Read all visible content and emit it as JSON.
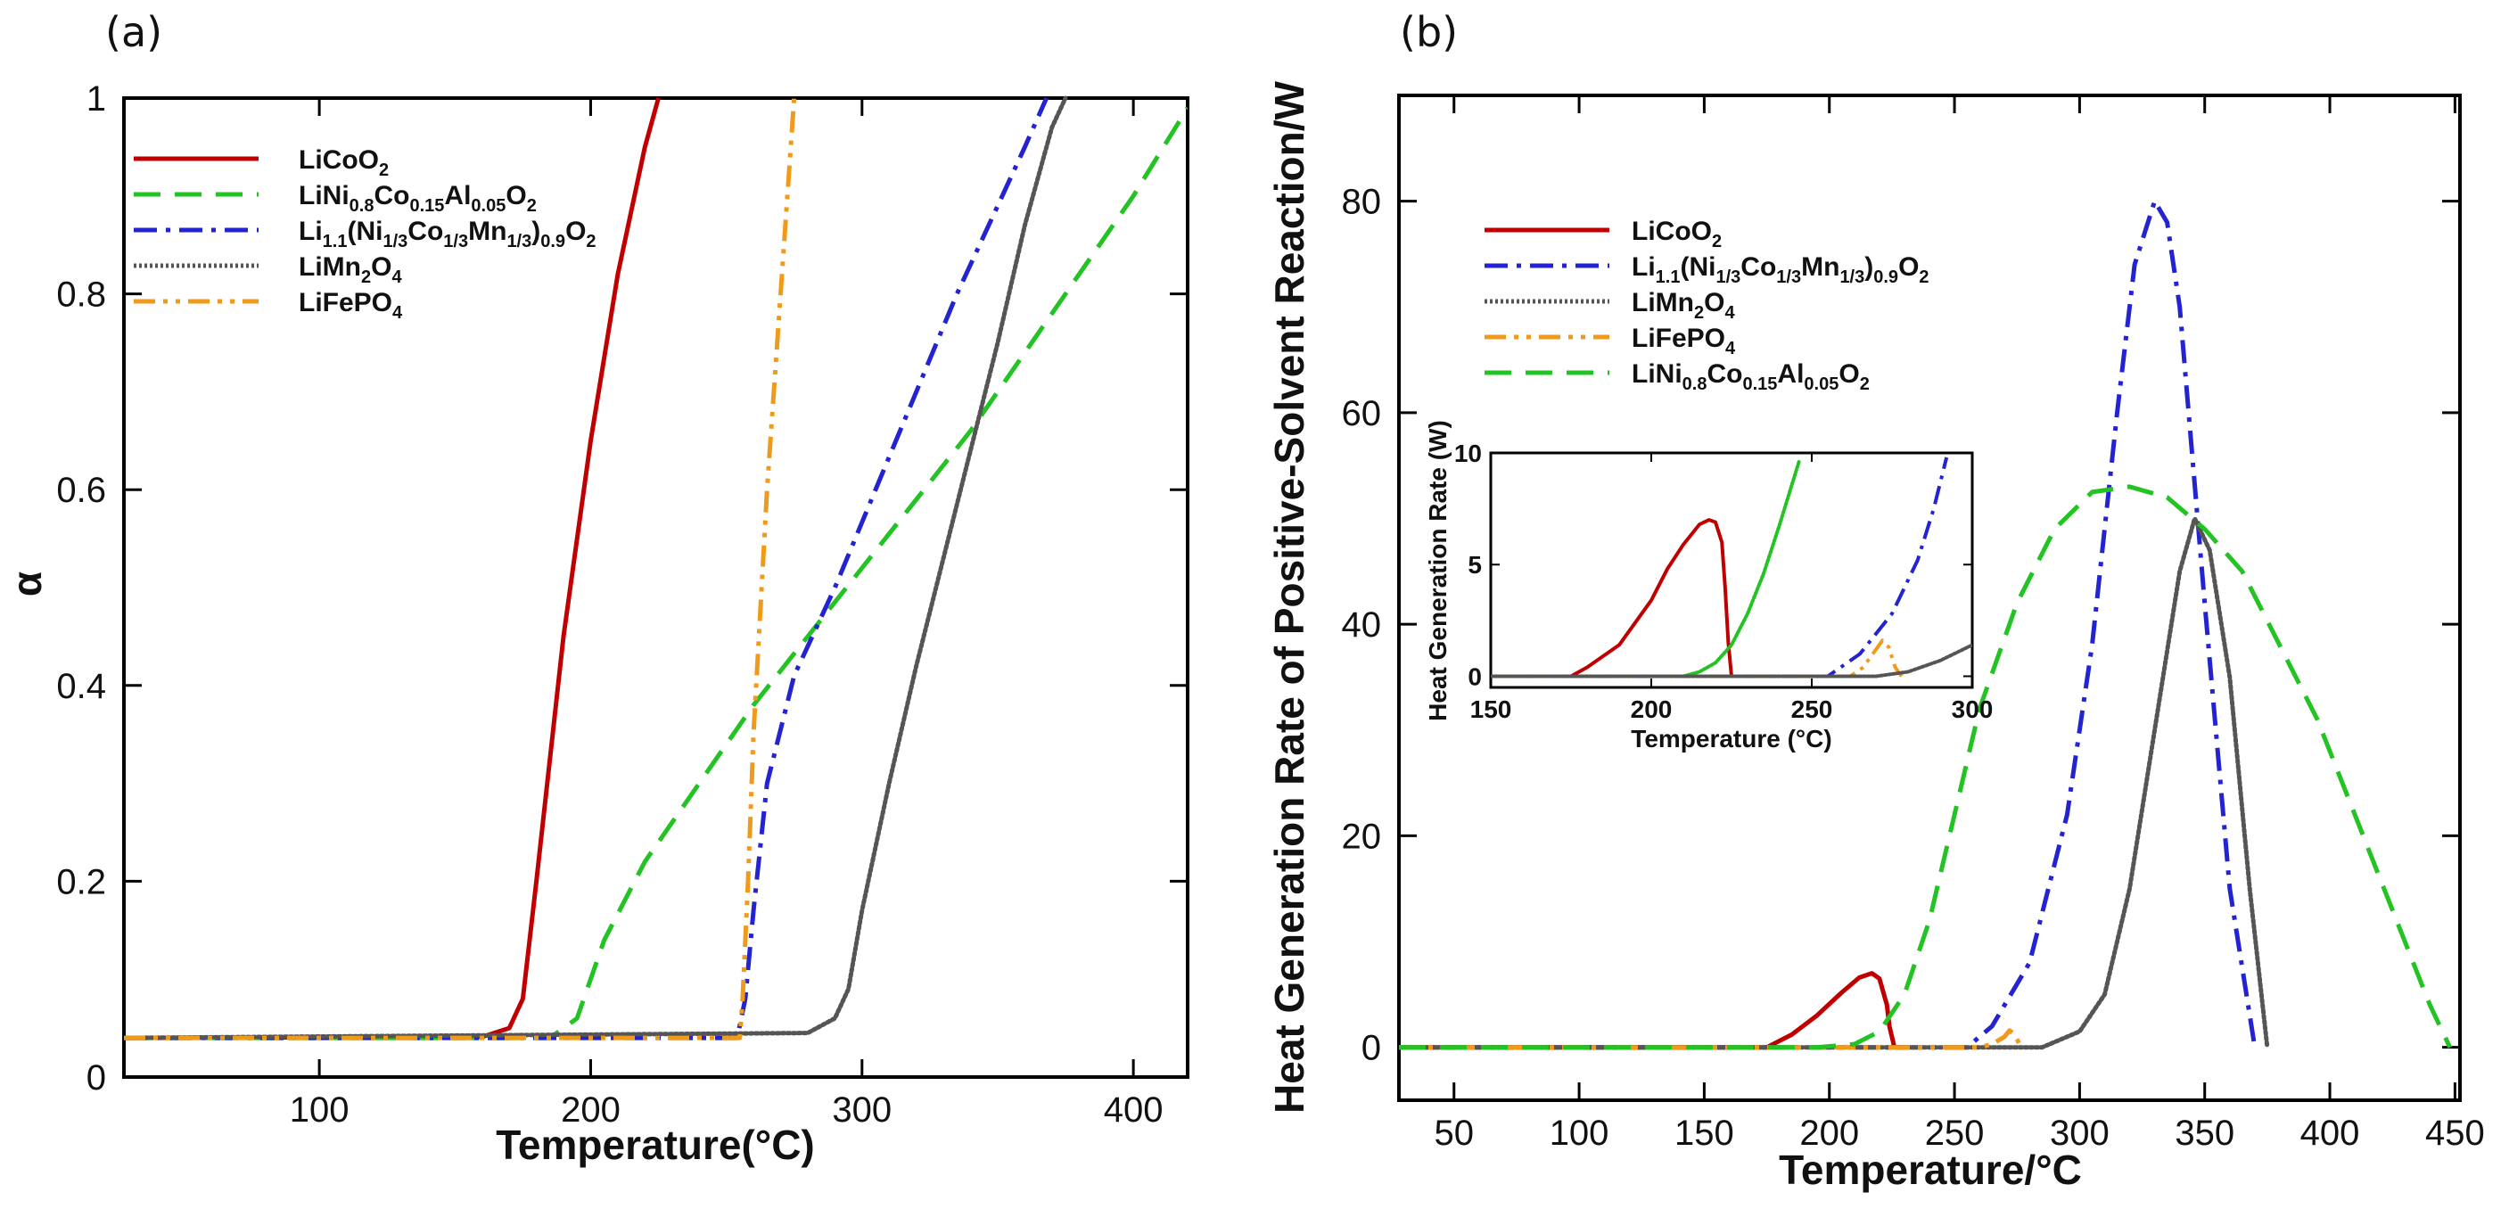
{
  "chart_data": [
    {
      "panel": "(a)",
      "type": "line",
      "xlabel": "Temperature(°C)",
      "ylabel": "α",
      "xlim": [
        28,
        420
      ],
      "ylim": [
        0,
        1
      ],
      "xticks": [
        100,
        200,
        300,
        400
      ],
      "yticks": [
        0,
        0.2,
        0.4,
        0.6,
        0.8,
        1
      ],
      "ytick_labels": [
        "0",
        "0.2",
        "0.4",
        "0.6",
        "0.8",
        "1"
      ],
      "legend_position": "top-left",
      "series": [
        {
          "key": "lco",
          "name": "LiCoO",
          "sub": "2",
          "color": "#c00000",
          "dash": "solid",
          "x": [
            28,
            160,
            170,
            175,
            180,
            190,
            200,
            210,
            220,
            225
          ],
          "y": [
            0.04,
            0.041,
            0.05,
            0.08,
            0.2,
            0.45,
            0.65,
            0.82,
            0.95,
            1.0
          ]
        },
        {
          "key": "nca",
          "name": "LiNi0.8Co0.15Al0.05O2",
          "color": "#22c322",
          "dash": "dashed",
          "x": [
            28,
            185,
            195,
            205,
            220,
            240,
            260,
            280,
            300,
            320,
            340,
            360,
            380,
            400,
            420
          ],
          "y": [
            0.04,
            0.04,
            0.06,
            0.14,
            0.22,
            0.3,
            0.38,
            0.45,
            0.52,
            0.59,
            0.66,
            0.74,
            0.82,
            0.9,
            0.99
          ]
        },
        {
          "key": "nmc",
          "name": "Li1.1(Ni1/3Co1/3Mn1/3)0.9O2",
          "color": "#2323d2",
          "dash": "dashdot",
          "x": [
            28,
            254,
            257,
            260,
            265,
            275,
            290,
            305,
            320,
            335,
            350,
            360,
            368
          ],
          "y": [
            0.04,
            0.04,
            0.08,
            0.17,
            0.3,
            0.41,
            0.5,
            0.6,
            0.7,
            0.8,
            0.89,
            0.95,
            1.0
          ]
        },
        {
          "key": "lmo",
          "name": "LiMn2O4",
          "color": "#555555",
          "dash": "dotted",
          "x": [
            28,
            280,
            290,
            295,
            300,
            310,
            320,
            330,
            340,
            350,
            360,
            370,
            375
          ],
          "y": [
            0.04,
            0.045,
            0.06,
            0.09,
            0.17,
            0.3,
            0.42,
            0.53,
            0.64,
            0.75,
            0.87,
            0.97,
            1.0
          ]
        },
        {
          "key": "lfp",
          "name": "LiFePO4",
          "color": "#f09a1c",
          "dash": "dashdotdot",
          "x": [
            28,
            255,
            256,
            258,
            260,
            265,
            270,
            275
          ],
          "y": [
            0.04,
            0.04,
            0.08,
            0.2,
            0.35,
            0.6,
            0.8,
            1.0
          ]
        }
      ]
    },
    {
      "panel": "(b)",
      "type": "line",
      "xlabel": "Temperature/°C",
      "ylabel": "Heat Generation Rate of Positive-Solvent Reaction/W",
      "xlim": [
        28,
        452
      ],
      "ylim": [
        -5,
        90
      ],
      "xticks": [
        50,
        100,
        150,
        200,
        250,
        300,
        350,
        400,
        450
      ],
      "yticks": [
        0,
        20,
        40,
        60,
        80
      ],
      "legend_position": "top-left",
      "series": [
        {
          "key": "lco",
          "name": "LiCoO2",
          "color": "#c00000",
          "dash": "solid",
          "x": [
            28,
            175,
            185,
            195,
            205,
            212,
            217,
            220,
            223,
            224,
            226,
            230
          ],
          "y": [
            0,
            0,
            1.2,
            3.0,
            5.2,
            6.6,
            7.0,
            6.5,
            4.0,
            2.0,
            0,
            0
          ]
        },
        {
          "key": "nmc",
          "name": "Li1.1(Ni1/3Co1/3Mn1/3)0.9O2",
          "color": "#2323d2",
          "dash": "dashdot",
          "x": [
            28,
            255,
            265,
            280,
            295,
            305,
            315,
            322,
            330,
            335,
            340,
            350,
            360,
            370
          ],
          "y": [
            0,
            0,
            2,
            8,
            22,
            38,
            60,
            74,
            80,
            78,
            70,
            42,
            15,
            0
          ]
        },
        {
          "key": "lmo",
          "name": "LiMn2O4",
          "color": "#555555",
          "dash": "dotted",
          "x": [
            28,
            285,
            300,
            310,
            320,
            330,
            340,
            346,
            352,
            360,
            368,
            375
          ],
          "y": [
            0,
            0,
            1.5,
            5,
            15,
            30,
            45,
            50,
            47,
            35,
            15,
            0
          ]
        },
        {
          "key": "lfp",
          "name": "LiFePO4",
          "color": "#f09a1c",
          "dash": "dashdotdot",
          "x": [
            28,
            260,
            265,
            270,
            272,
            274,
            276,
            278
          ],
          "y": [
            0,
            0,
            0.3,
            1.0,
            1.6,
            1.2,
            0.3,
            0
          ]
        },
        {
          "key": "nca",
          "name": "LiNi0.8Co0.15Al0.05O2",
          "color": "#22c322",
          "dash": "dashed",
          "x": [
            28,
            195,
            210,
            220,
            230,
            240,
            250,
            260,
            275,
            290,
            305,
            320,
            335,
            350,
            365,
            380,
            395,
            410,
            425,
            440,
            448
          ],
          "y": [
            0,
            0,
            0.3,
            1.5,
            5,
            12,
            22,
            32,
            42,
            49,
            52.5,
            53,
            52,
            49,
            45,
            38,
            31,
            22,
            13,
            4,
            0
          ]
        }
      ],
      "inset": {
        "xlabel": "Temperature (°C)",
        "ylabel": "Heat Generation Rate (W)",
        "xlim": [
          150,
          300
        ],
        "ylim": [
          -0.5,
          10
        ],
        "xticks": [
          150,
          200,
          250,
          300
        ],
        "yticks": [
          0,
          5,
          10
        ],
        "series": [
          {
            "key": "lco",
            "color": "#c00000",
            "dash": "solid",
            "x": [
              150,
              175,
              180,
              190,
              200,
              205,
              210,
              215,
              218,
              220,
              222,
              223,
              224,
              225
            ],
            "y": [
              0,
              0,
              0.4,
              1.4,
              3.4,
              4.8,
              5.9,
              6.8,
              7.0,
              6.9,
              6.0,
              4.0,
              1.5,
              0
            ]
          },
          {
            "key": "nca",
            "color": "#22c322",
            "dash": "dotted",
            "x": [
              150,
              210,
              215,
              220,
              225,
              230,
              235,
              240,
              243,
              246
            ],
            "y": [
              0,
              0,
              0.2,
              0.6,
              1.4,
              2.8,
              4.6,
              6.8,
              8.2,
              9.6
            ]
          },
          {
            "key": "nmc",
            "color": "#2323d2",
            "dash": "dashdot",
            "x": [
              150,
              255,
              265,
              275,
              283,
              288,
              292
            ],
            "y": [
              0,
              0,
              1.0,
              2.8,
              5.2,
              7.5,
              9.8
            ]
          },
          {
            "key": "lfp",
            "color": "#f09a1c",
            "dash": "dashdotdot",
            "x": [
              150,
              262,
              266,
              270,
              272,
              274,
              276,
              278
            ],
            "y": [
              0,
              0,
              0.4,
              1.2,
              1.6,
              1.3,
              0.4,
              0
            ]
          },
          {
            "key": "lmo",
            "color": "#555555",
            "dash": "dotted",
            "x": [
              150,
              270,
              280,
              290,
              300
            ],
            "y": [
              0,
              0,
              0.2,
              0.7,
              1.4
            ]
          }
        ]
      }
    }
  ]
}
